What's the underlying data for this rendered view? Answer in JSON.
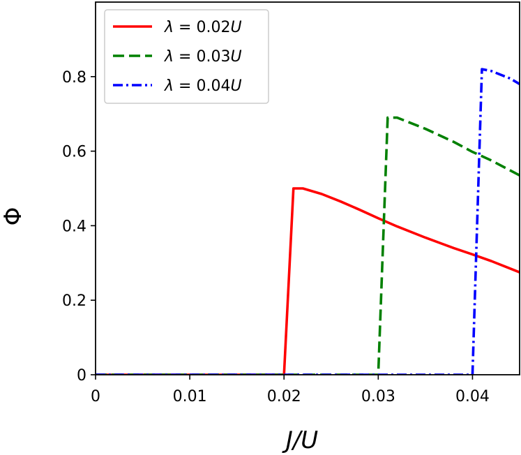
{
  "chart_data": {
    "type": "line",
    "xlabel": "J/U",
    "ylabel": "Φ",
    "xlim": [
      0,
      0.045
    ],
    "ylim": [
      0,
      1.0
    ],
    "xticks": [
      0,
      0.01,
      0.02,
      0.03,
      0.04
    ],
    "xtick_labels": [
      "0",
      "0.01",
      "0.02",
      "0.03",
      "0.04"
    ],
    "yticks": [
      0,
      0.2,
      0.4,
      0.6,
      0.8
    ],
    "ytick_labels": [
      "0",
      "0.2",
      "0.4",
      "0.6",
      "0.8"
    ],
    "grid": false,
    "legend_position": "top-left",
    "series": [
      {
        "name": "λ = 0.02U",
        "legend_parts": [
          "λ",
          " = 0.02",
          "U"
        ],
        "color": "#ff0000",
        "style": "solid",
        "x": [
          0,
          0.02,
          0.021,
          0.022,
          0.024,
          0.026,
          0.028,
          0.03,
          0.032,
          0.035,
          0.038,
          0.04,
          0.042,
          0.045
        ],
        "y": [
          0,
          0,
          0.5,
          0.5,
          0.485,
          0.465,
          0.443,
          0.42,
          0.398,
          0.368,
          0.34,
          0.323,
          0.305,
          0.275
        ]
      },
      {
        "name": "λ = 0.03U",
        "legend_parts": [
          "λ",
          " = 0.03",
          "U"
        ],
        "color": "#008000",
        "style": "dashed",
        "x": [
          0,
          0.03,
          0.031,
          0.032,
          0.035,
          0.038,
          0.04,
          0.042,
          0.045
        ],
        "y": [
          0,
          0,
          0.69,
          0.69,
          0.66,
          0.625,
          0.598,
          0.575,
          0.535
        ]
      },
      {
        "name": "λ = 0.04U",
        "legend_parts": [
          "λ",
          " = 0.04",
          "U"
        ],
        "color": "#0000ff",
        "style": "dashdot",
        "x": [
          0,
          0.04,
          0.041,
          0.042,
          0.044,
          0.045
        ],
        "y": [
          0,
          0,
          0.82,
          0.815,
          0.795,
          0.78
        ]
      }
    ]
  }
}
